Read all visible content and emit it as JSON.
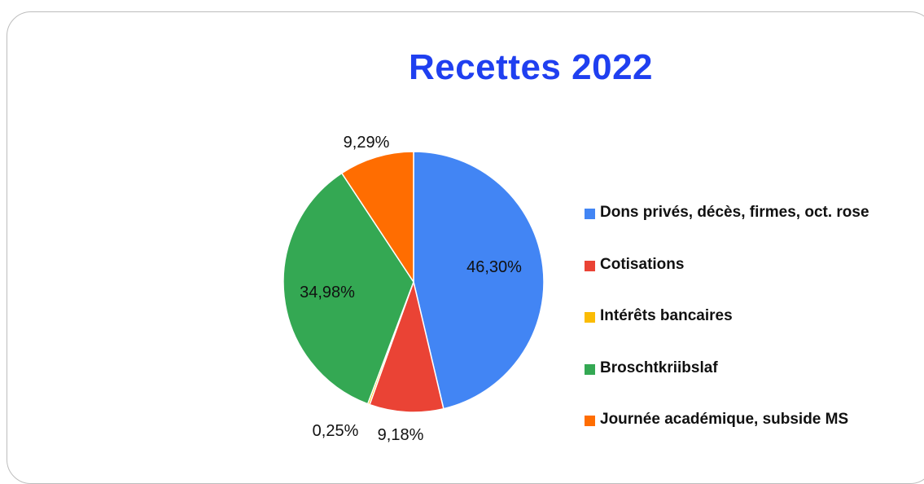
{
  "chart_data": {
    "type": "pie",
    "title": "Recettes 2022",
    "slices": [
      {
        "label": "Dons privés, décès, firmes, oct. rose",
        "value": 46.3,
        "display": "46,30%",
        "color": "#4285f4"
      },
      {
        "label": "Cotisations",
        "value": 9.18,
        "display": "9,18%",
        "color": "#ea4335"
      },
      {
        "label": "Intérêts bancaires",
        "value": 0.25,
        "display": "0,25%",
        "color": "#fbbc04"
      },
      {
        "label": "Broschtkriibslaf",
        "value": 34.98,
        "display": "34,98%",
        "color": "#34a853"
      },
      {
        "label": "Journée académique, subside MS",
        "value": 9.29,
        "display": "9,29%",
        "color": "#ff6d01"
      }
    ],
    "legend_position": "right"
  }
}
